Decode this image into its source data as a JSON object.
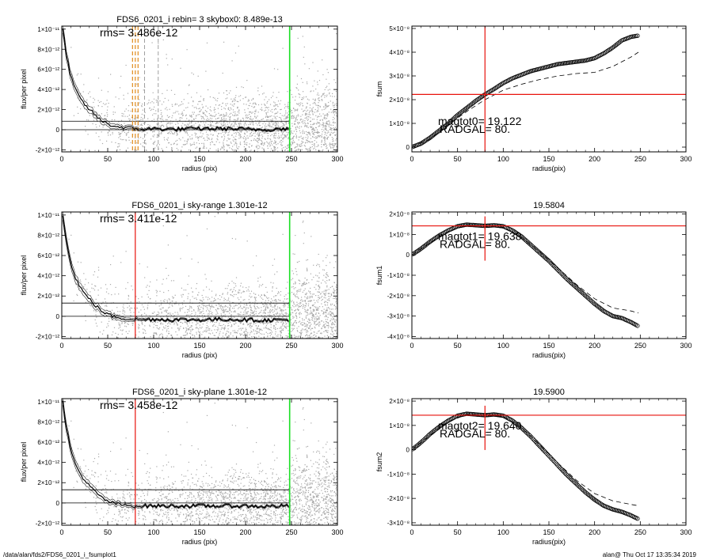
{
  "footer": {
    "left": "/data/alan/fds2/FDS6_0201_i_fsumplot1",
    "right": "alan@  Thu Oct 17 13:35:34 2019"
  },
  "colors": {
    "background": "#ffffff",
    "scatter": "#a9a9a9",
    "red": "#e8120c",
    "green": "#1adf24",
    "orange": "#e08b1c",
    "axis": "#000000"
  },
  "chart_data": [
    {
      "type": "scatter",
      "title": "FDS6_0201_i rebin= 3    skybox0:  8.489e-13",
      "annotation": "rms= 3.486e-12",
      "xlabel": "radius (pix)",
      "ylabel": "flux/per pixel",
      "xlim": [
        0,
        300
      ],
      "ylim": [
        -2.2e-12,
        1.03e-11
      ],
      "xticks": [
        "0",
        "50",
        "100",
        "150",
        "200",
        "250",
        "300"
      ],
      "yticks": [
        {
          "value": 1e-11,
          "label": "1×10⁻¹¹"
        },
        {
          "value": 8e-12,
          "label": "8×10⁻¹²"
        },
        {
          "value": 6e-12,
          "label": "6×10⁻¹²"
        },
        {
          "value": 4e-12,
          "label": "4×10⁻¹²"
        },
        {
          "value": 2e-12,
          "label": "2×10⁻¹²"
        },
        {
          "value": 0,
          "label": "0"
        },
        {
          "value": -2e-12,
          "label": "-2×10⁻¹²"
        }
      ],
      "sky_level": 8.489e-13,
      "vlines": [
        {
          "x": 80,
          "color": "orange-dashed"
        },
        {
          "x": 77,
          "color": "orange-dashed"
        },
        {
          "x": 83,
          "color": "orange-dashed"
        },
        {
          "x": 90,
          "color": "gray-dashed"
        },
        {
          "x": 105,
          "color": "gray-dashed"
        },
        {
          "x": 248,
          "color": "green"
        }
      ],
      "profile": [
        [
          1,
          1e-11
        ],
        [
          5,
          7.5e-12
        ],
        [
          10,
          5.2e-12
        ],
        [
          15,
          4e-12
        ],
        [
          20,
          3.1e-12
        ],
        [
          25,
          2.5e-12
        ],
        [
          30,
          2e-12
        ],
        [
          35,
          1.6e-12
        ],
        [
          40,
          1.1e-12
        ],
        [
          45,
          8e-13
        ],
        [
          50,
          6e-13
        ],
        [
          55,
          4e-13
        ],
        [
          60,
          3e-13
        ],
        [
          70,
          2e-13
        ],
        [
          80,
          1e-13
        ],
        [
          90,
          5e-14
        ],
        [
          100,
          1e-13
        ],
        [
          120,
          5e-14
        ],
        [
          150,
          1e-13
        ],
        [
          180,
          1e-13
        ],
        [
          200,
          5e-14
        ],
        [
          220,
          0.0
        ],
        [
          240,
          1e-13
        ],
        [
          248,
          1e-13
        ]
      ]
    },
    {
      "type": "line",
      "title": "",
      "annotation1": "magtot0= 19.122",
      "annotation2": "RADGAL=    80.",
      "xlabel": "radius(pix)",
      "ylabel": "fsum",
      "xlim": [
        0,
        300
      ],
      "ylim": [
        -2e-09,
        5.1e-08
      ],
      "xticks": [
        "0",
        "50",
        "100",
        "150",
        "200",
        "250",
        "300"
      ],
      "yticks": [
        {
          "value": 5e-08,
          "label": "5×10⁻⁸"
        },
        {
          "value": 4e-08,
          "label": "4×10⁻⁸"
        },
        {
          "value": 3e-08,
          "label": "3×10⁻⁸"
        },
        {
          "value": 2e-08,
          "label": "2×10⁻⁸"
        },
        {
          "value": 1e-08,
          "label": "1×10⁻⁸"
        },
        {
          "value": 0,
          "label": "0"
        }
      ],
      "crosshair": {
        "x": 80,
        "y": 2.22e-08
      },
      "series": [
        {
          "values": [
            [
              0,
              0
            ],
            [
              10,
              1.5e-09
            ],
            [
              20,
              4e-09
            ],
            [
              30,
              7e-09
            ],
            [
              40,
              1e-08
            ],
            [
              50,
              1.35e-08
            ],
            [
              60,
              1.65e-08
            ],
            [
              70,
              1.95e-08
            ],
            [
              80,
              2.22e-08
            ],
            [
              90,
              2.45e-08
            ],
            [
              100,
              2.7e-08
            ],
            [
              110,
              2.9e-08
            ],
            [
              120,
              3.05e-08
            ],
            [
              130,
              3.2e-08
            ],
            [
              140,
              3.3e-08
            ],
            [
              150,
              3.4e-08
            ],
            [
              160,
              3.5e-08
            ],
            [
              170,
              3.55e-08
            ],
            [
              180,
              3.6e-08
            ],
            [
              190,
              3.65e-08
            ],
            [
              200,
              3.75e-08
            ],
            [
              210,
              3.95e-08
            ],
            [
              220,
              4.2e-08
            ],
            [
              230,
              4.5e-08
            ],
            [
              240,
              4.65e-08
            ],
            [
              248,
              4.7e-08
            ]
          ]
        },
        {
          "values": [
            [
              0,
              0
            ],
            [
              20,
              3.5e-09
            ],
            [
              40,
              9.5e-09
            ],
            [
              60,
              1.5e-08
            ],
            [
              80,
              2e-08
            ],
            [
              100,
              2.4e-08
            ],
            [
              120,
              2.65e-08
            ],
            [
              140,
              2.85e-08
            ],
            [
              160,
              3e-08
            ],
            [
              180,
              3.1e-08
            ],
            [
              200,
              3.15e-08
            ],
            [
              220,
              3.4e-08
            ],
            [
              240,
              3.8e-08
            ],
            [
              248,
              4e-08
            ]
          ]
        }
      ]
    },
    {
      "type": "scatter",
      "title": "FDS6_0201_i sky-range  1.301e-12",
      "annotation": "rms= 3.411e-12",
      "xlabel": "radius (pix)",
      "ylabel": "flux/per pixel",
      "xlim": [
        0,
        300
      ],
      "ylim": [
        -2.2e-12,
        1.03e-11
      ],
      "xticks": [
        "0",
        "50",
        "100",
        "150",
        "200",
        "250",
        "300"
      ],
      "yticks": [
        {
          "value": 1e-11,
          "label": "1×10⁻¹¹"
        },
        {
          "value": 8e-12,
          "label": "8×10⁻¹²"
        },
        {
          "value": 6e-12,
          "label": "6×10⁻¹²"
        },
        {
          "value": 4e-12,
          "label": "4×10⁻¹²"
        },
        {
          "value": 2e-12,
          "label": "2×10⁻¹²"
        },
        {
          "value": 0,
          "label": "0"
        },
        {
          "value": -2e-12,
          "label": "-2×10⁻¹²"
        }
      ],
      "sky_level": 1.301e-12,
      "vlines": [
        {
          "x": 80,
          "color": "red"
        },
        {
          "x": 248,
          "color": "green"
        }
      ],
      "profile": [
        [
          1,
          1e-11
        ],
        [
          5,
          7.6e-12
        ],
        [
          10,
          5e-12
        ],
        [
          15,
          3.8e-12
        ],
        [
          20,
          2.9e-12
        ],
        [
          25,
          2.2e-12
        ],
        [
          30,
          1.7e-12
        ],
        [
          35,
          1.2e-12
        ],
        [
          40,
          8e-13
        ],
        [
          45,
          4e-13
        ],
        [
          50,
          2e-13
        ],
        [
          55,
          0.0
        ],
        [
          60,
          -1e-13
        ],
        [
          70,
          -2.5e-13
        ],
        [
          80,
          -3e-13
        ],
        [
          90,
          -3.5e-13
        ],
        [
          100,
          -3e-13
        ],
        [
          120,
          -3.5e-13
        ],
        [
          150,
          -3.5e-13
        ],
        [
          180,
          -3e-13
        ],
        [
          200,
          -3.5e-13
        ],
        [
          220,
          -4e-13
        ],
        [
          240,
          -3.5e-13
        ],
        [
          248,
          -3.5e-13
        ]
      ]
    },
    {
      "type": "line",
      "title": "19.5804",
      "annotation1": "magtot1= 19.638",
      "annotation2": "RADGAL=    80.",
      "xlabel": "radius(pix)",
      "ylabel": "fsum1",
      "xlim": [
        0,
        300
      ],
      "ylim": [
        -4.1e-08,
        2.1e-08
      ],
      "xticks": [
        "0",
        "50",
        "100",
        "150",
        "200",
        "250",
        "300"
      ],
      "yticks": [
        {
          "value": 2e-08,
          "label": "2×10⁻⁸"
        },
        {
          "value": 1e-08,
          "label": "1×10⁻⁸"
        },
        {
          "value": 0,
          "label": "0"
        },
        {
          "value": -1e-08,
          "label": "-1×10⁻⁸"
        },
        {
          "value": -2e-08,
          "label": "-2×10⁻⁸"
        },
        {
          "value": -3e-08,
          "label": "-3×10⁻⁸"
        },
        {
          "value": -4e-08,
          "label": "-4×10⁻⁸"
        }
      ],
      "crosshair": {
        "x": 80,
        "y": 1.42e-08
      },
      "series": [
        {
          "values": [
            [
              0,
              0
            ],
            [
              10,
              3e-09
            ],
            [
              20,
              6.5e-09
            ],
            [
              30,
              9.5e-09
            ],
            [
              40,
              1.2e-08
            ],
            [
              50,
              1.4e-08
            ],
            [
              60,
              1.48e-08
            ],
            [
              70,
              1.45e-08
            ],
            [
              80,
              1.42e-08
            ],
            [
              90,
              1.45e-08
            ],
            [
              100,
              1.4e-08
            ],
            [
              110,
              1.2e-08
            ],
            [
              120,
              9e-09
            ],
            [
              130,
              5e-09
            ],
            [
              140,
              1e-09
            ],
            [
              150,
              -3e-09
            ],
            [
              160,
              -7.5e-09
            ],
            [
              170,
              -1.2e-08
            ],
            [
              180,
              -1.6e-08
            ],
            [
              190,
              -2e-08
            ],
            [
              200,
              -2.4e-08
            ],
            [
              210,
              -2.75e-08
            ],
            [
              220,
              -3e-08
            ],
            [
              230,
              -3.1e-08
            ],
            [
              240,
              -3.3e-08
            ],
            [
              248,
              -3.5e-08
            ]
          ]
        },
        {
          "values": [
            [
              0,
              0
            ],
            [
              20,
              6e-09
            ],
            [
              40,
              1.15e-08
            ],
            [
              60,
              1.45e-08
            ],
            [
              80,
              1.4e-08
            ],
            [
              100,
              1.35e-08
            ],
            [
              120,
              8.5e-09
            ],
            [
              140,
              1.5e-09
            ],
            [
              160,
              -6.5e-09
            ],
            [
              180,
              -1.45e-08
            ],
            [
              200,
              -2.15e-08
            ],
            [
              220,
              -2.6e-08
            ],
            [
              240,
              -2.75e-08
            ],
            [
              248,
              -2.85e-08
            ]
          ]
        }
      ]
    },
    {
      "type": "scatter",
      "title": "FDS6_0201_i sky-plane  1.301e-12",
      "annotation": "rms= 3.458e-12",
      "xlabel": "radius (pix)",
      "ylabel": "flux/per pixel",
      "xlim": [
        0,
        300
      ],
      "ylim": [
        -2.2e-12,
        1.03e-11
      ],
      "xticks": [
        "0",
        "50",
        "100",
        "150",
        "200",
        "250",
        "300"
      ],
      "yticks": [
        {
          "value": 1e-11,
          "label": "1×10⁻¹¹"
        },
        {
          "value": 8e-12,
          "label": "8×10⁻¹²"
        },
        {
          "value": 6e-12,
          "label": "6×10⁻¹²"
        },
        {
          "value": 4e-12,
          "label": "4×10⁻¹²"
        },
        {
          "value": 2e-12,
          "label": "2×10⁻¹²"
        },
        {
          "value": 0,
          "label": "0"
        },
        {
          "value": -2e-12,
          "label": "-2×10⁻¹²"
        }
      ],
      "sky_level": 1.301e-12,
      "vlines": [
        {
          "x": 80,
          "color": "red"
        },
        {
          "x": 248,
          "color": "green"
        }
      ],
      "profile": [
        [
          1,
          1e-11
        ],
        [
          5,
          7.5e-12
        ],
        [
          10,
          5.1e-12
        ],
        [
          15,
          3.8e-12
        ],
        [
          20,
          2.9e-12
        ],
        [
          25,
          2.2e-12
        ],
        [
          30,
          1.7e-12
        ],
        [
          35,
          1.2e-12
        ],
        [
          40,
          8e-13
        ],
        [
          45,
          4e-13
        ],
        [
          50,
          2e-13
        ],
        [
          55,
          0.0
        ],
        [
          60,
          -1e-13
        ],
        [
          70,
          -2.5e-13
        ],
        [
          80,
          -3e-13
        ],
        [
          90,
          -3e-13
        ],
        [
          100,
          -3e-13
        ],
        [
          120,
          -3e-13
        ],
        [
          150,
          -3e-13
        ],
        [
          180,
          -3e-13
        ],
        [
          200,
          -3e-13
        ],
        [
          220,
          -3.5e-13
        ],
        [
          240,
          -3e-13
        ],
        [
          248,
          -3e-13
        ]
      ]
    },
    {
      "type": "line",
      "title": "19.5900",
      "annotation1": "magtot2= 19.640",
      "annotation2": "RADGAL=    80.",
      "xlabel": "radius(pix)",
      "ylabel": "fsum2",
      "xlim": [
        0,
        300
      ],
      "ylim": [
        -3.1e-08,
        2.1e-08
      ],
      "xticks": [
        "0",
        "50",
        "100",
        "150",
        "200",
        "250",
        "300"
      ],
      "yticks": [
        {
          "value": 2e-08,
          "label": "2×10⁻⁸"
        },
        {
          "value": 1e-08,
          "label": "1×10⁻⁸"
        },
        {
          "value": 0,
          "label": "0"
        },
        {
          "value": -1e-08,
          "label": "-1×10⁻⁸"
        },
        {
          "value": -2e-08,
          "label": "-2×10⁻⁸"
        },
        {
          "value": -3e-08,
          "label": "-3×10⁻⁸"
        }
      ],
      "crosshair": {
        "x": 80,
        "y": 1.42e-08
      },
      "series": [
        {
          "values": [
            [
              0,
              0
            ],
            [
              10,
              3e-09
            ],
            [
              20,
              6.5e-09
            ],
            [
              30,
              9.5e-09
            ],
            [
              40,
              1.2e-08
            ],
            [
              50,
              1.4e-08
            ],
            [
              60,
              1.48e-08
            ],
            [
              70,
              1.45e-08
            ],
            [
              80,
              1.42e-08
            ],
            [
              90,
              1.45e-08
            ],
            [
              100,
              1.4e-08
            ],
            [
              110,
              1.2e-08
            ],
            [
              120,
              9e-09
            ],
            [
              130,
              5.5e-09
            ],
            [
              140,
              1.5e-09
            ],
            [
              150,
              -2.5e-09
            ],
            [
              160,
              -6.5e-09
            ],
            [
              170,
              -1.05e-08
            ],
            [
              180,
              -1.4e-08
            ],
            [
              190,
              -1.75e-08
            ],
            [
              200,
              -2.05e-08
            ],
            [
              210,
              -2.3e-08
            ],
            [
              220,
              -2.45e-08
            ],
            [
              230,
              -2.55e-08
            ],
            [
              240,
              -2.7e-08
            ],
            [
              248,
              -2.85e-08
            ]
          ]
        },
        {
          "values": [
            [
              0,
              0
            ],
            [
              20,
              6e-09
            ],
            [
              40,
              1.15e-08
            ],
            [
              60,
              1.45e-08
            ],
            [
              80,
              1.4e-08
            ],
            [
              100,
              1.38e-08
            ],
            [
              120,
              9e-09
            ],
            [
              140,
              2e-09
            ],
            [
              160,
              -5.5e-09
            ],
            [
              180,
              -1.25e-08
            ],
            [
              200,
              -1.8e-08
            ],
            [
              220,
              -2.1e-08
            ],
            [
              240,
              -2.25e-08
            ],
            [
              248,
              -2.3e-08
            ]
          ]
        }
      ]
    }
  ]
}
